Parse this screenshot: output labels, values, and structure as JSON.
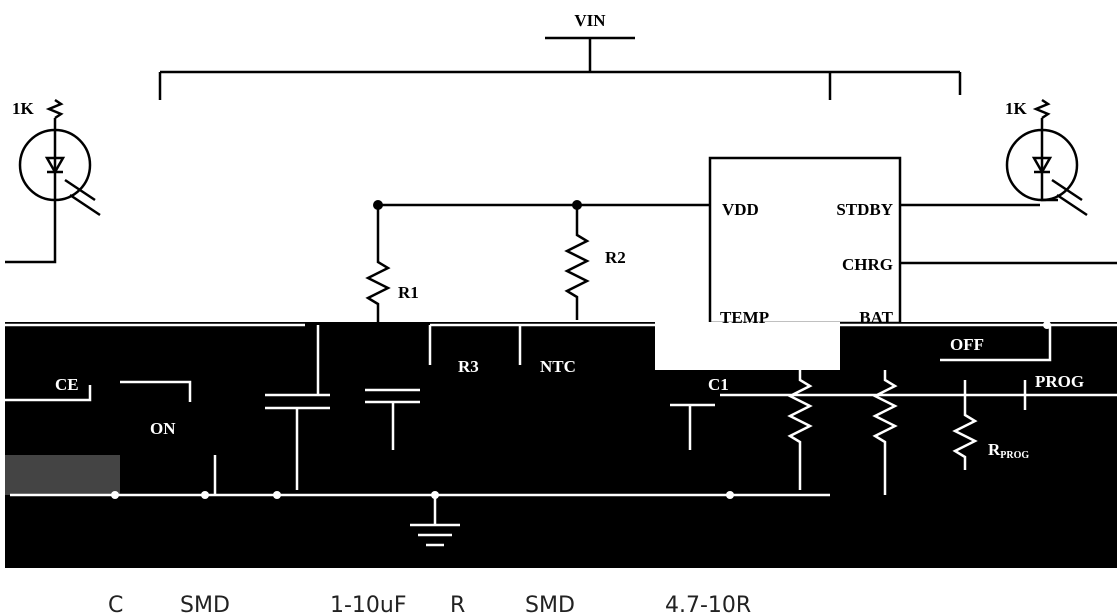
{
  "labels": {
    "vin": "VIN",
    "led_left": "1K",
    "led_right": "1K",
    "vdd": "VDD",
    "stdby": "STDBY",
    "chrg": "CHRG",
    "r1": "R1",
    "r2": "R2",
    "temp": "TEMP",
    "bat": "BAT",
    "r3": "R3",
    "ntc": "NTC",
    "ce": "CE",
    "on": "ON",
    "off": "OFF",
    "c1": "C1",
    "prog": "PROG",
    "rprog": "R",
    "rprog_sub": "PROG"
  },
  "caption": [
    "C",
    "SMD",
    "1-10uF",
    "R",
    "SMD",
    "4.7-10R"
  ]
}
